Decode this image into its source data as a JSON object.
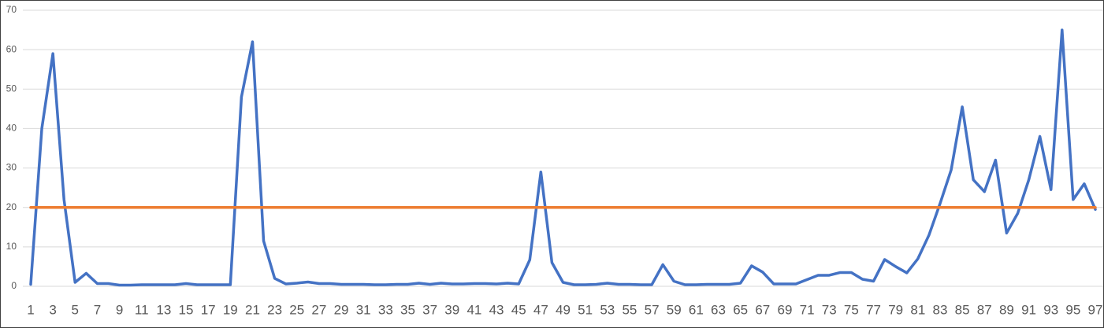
{
  "chart_data": {
    "type": "line",
    "categories": [
      1,
      null,
      3,
      null,
      5,
      null,
      7,
      null,
      9,
      null,
      11,
      null,
      13,
      null,
      15,
      null,
      17,
      null,
      19,
      null,
      21,
      null,
      23,
      null,
      25,
      null,
      27,
      null,
      29,
      null,
      31,
      null,
      33,
      null,
      35,
      null,
      37,
      null,
      39,
      null,
      41,
      null,
      43,
      null,
      45,
      null,
      47,
      null,
      49,
      null,
      51,
      null,
      53,
      null,
      55,
      null,
      57,
      null,
      59,
      null,
      61,
      null,
      63,
      null,
      65,
      null,
      67,
      null,
      69,
      null,
      71,
      null,
      73,
      null,
      75,
      null,
      77,
      null,
      79,
      null,
      81,
      null,
      83,
      null,
      85,
      null,
      87,
      null,
      89,
      null,
      91,
      null,
      93,
      null,
      95,
      null,
      97
    ],
    "series": [
      {
        "color": "#4472c4",
        "values": [
          0.5,
          40,
          59,
          22,
          1,
          3.3,
          0.7,
          0.7,
          0.3,
          0.3,
          0.4,
          0.4,
          0.4,
          0.4,
          0.7,
          0.4,
          0.4,
          0.4,
          0.4,
          48,
          62,
          11.5,
          2,
          0.6,
          0.8,
          1.1,
          0.7,
          0.7,
          0.5,
          0.5,
          0.5,
          0.4,
          0.4,
          0.5,
          0.5,
          0.8,
          0.5,
          0.8,
          0.6,
          0.6,
          0.7,
          0.7,
          0.6,
          0.8,
          0.6,
          6.7,
          29,
          6,
          1,
          0.4,
          0.4,
          0.5,
          0.8,
          0.5,
          0.5,
          0.4,
          0.4,
          5.5,
          1.3,
          0.4,
          0.4,
          0.5,
          0.5,
          0.5,
          0.8,
          5.2,
          3.6,
          0.6,
          0.6,
          0.6,
          1.7,
          2.8,
          2.8,
          3.5,
          3.5,
          1.8,
          1.3,
          6.8,
          5,
          3.4,
          7,
          13,
          21,
          29.5,
          45.5,
          27,
          24,
          32,
          13.5,
          18.5,
          27,
          38,
          24.5,
          65,
          22,
          26,
          19.5
        ]
      },
      {
        "color": "#ed7d31",
        "values": [
          20,
          20,
          20,
          20,
          20,
          20,
          20,
          20,
          20,
          20,
          20,
          20,
          20,
          20,
          20,
          20,
          20,
          20,
          20,
          20,
          20,
          20,
          20,
          20,
          20,
          20,
          20,
          20,
          20,
          20,
          20,
          20,
          20,
          20,
          20,
          20,
          20,
          20,
          20,
          20,
          20,
          20,
          20,
          20,
          20,
          20,
          20,
          20,
          20,
          20,
          20,
          20,
          20,
          20,
          20,
          20,
          20,
          20,
          20,
          20,
          20,
          20,
          20,
          20,
          20,
          20,
          20,
          20,
          20,
          20,
          20,
          20,
          20,
          20,
          20,
          20,
          20,
          20,
          20,
          20,
          20,
          20,
          20,
          20,
          20,
          20,
          20,
          20,
          20,
          20,
          20,
          20,
          20,
          20,
          20,
          20,
          20
        ]
      }
    ],
    "ylim": [
      0,
      70
    ],
    "yticks": [
      0,
      10,
      20,
      30,
      40,
      50,
      60,
      70
    ],
    "grid": true
  }
}
